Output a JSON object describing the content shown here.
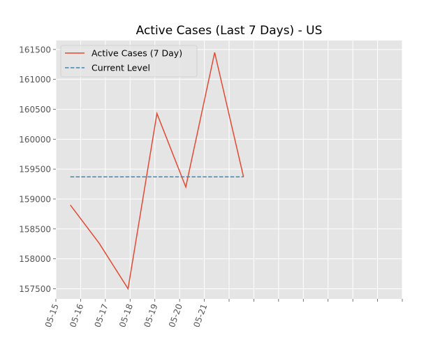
{
  "chart_data": {
    "type": "line",
    "title": "Active Cases (Last 7 Days) - US",
    "xlabel": "",
    "ylabel": "",
    "x_tick_labels": [
      "05-15",
      "05-16",
      "05-17",
      "05-18",
      "05-19",
      "05-20",
      "05-21"
    ],
    "y_ticks": [
      157500,
      158000,
      158500,
      159000,
      159500,
      160000,
      160500,
      161000,
      161500
    ],
    "ylim": [
      157330,
      161650
    ],
    "grid": true,
    "legend_position": "upper-left",
    "series": [
      {
        "name": "Active Cases (7 Day)",
        "style": "solid",
        "color": "#E24A33",
        "x": [
          "05-15 14:00",
          "05-16 18:00",
          "05-17 22:00",
          "05-19 02:00",
          "05-20 06:00",
          "05-21 10:00",
          "05-22 14:00"
        ],
        "y": [
          158900,
          158260,
          157500,
          160430,
          159200,
          161450,
          159370
        ]
      },
      {
        "name": "Current Level",
        "style": "dashed",
        "color": "#348ABD",
        "x": [
          "05-15 14:00",
          "05-22 14:00"
        ],
        "y": [
          159370,
          159370
        ]
      }
    ]
  }
}
